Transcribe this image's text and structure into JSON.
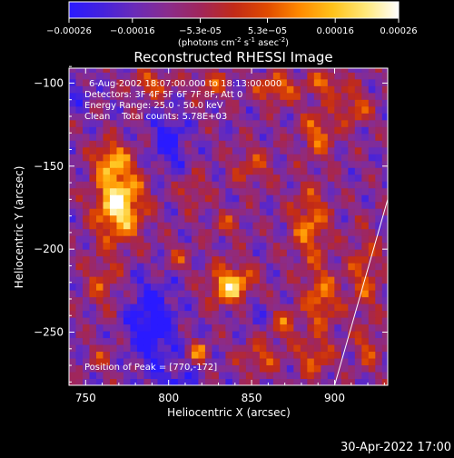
{
  "colorbar": {
    "ticks": [
      "-0.00026",
      "-0.00016",
      "-5.3e-05",
      "5.3e-05",
      "0.00016",
      "0.00026"
    ],
    "unit_label_main": "(photons cm",
    "unit_sup1": "-2",
    "unit_mid": " s",
    "unit_sup2": "-1",
    "unit_mid2": " asec",
    "unit_sup3": "-2",
    "unit_close": ")",
    "stops": [
      "#2a1aff",
      "#4422dd",
      "#6a2bb8",
      "#8a2c8c",
      "#a1265a",
      "#c12a18",
      "#e04a00",
      "#ff8a00",
      "#ffc21a",
      "#ffe87a",
      "#ffffff"
    ]
  },
  "chart_data": {
    "type": "heatmap",
    "title": "Reconstructed RHESSI Image",
    "xlabel": "Heliocentric X (arcsec)",
    "ylabel": "Heliocentric Y (arcsec)",
    "xlim": [
      740,
      932
    ],
    "ylim": [
      -282,
      -91
    ],
    "xticks": [
      750,
      800,
      850,
      900
    ],
    "yticks": [
      -100,
      -150,
      -200,
      -250
    ],
    "xtick_labels": [
      "750",
      "800",
      "850",
      "900"
    ],
    "ytick_labels": [
      "−100",
      "−150",
      "−200",
      "−250"
    ],
    "vrange": [
      -0.00026,
      0.00026
    ],
    "peak": [
      770,
      -172
    ],
    "limb_line": {
      "from": [
        900,
        -282
      ],
      "to": [
        932,
        -170
      ]
    }
  },
  "annotations": {
    "time_range": "6-Aug-2002 18:07:00.000 to 18:13:00.000",
    "detectors": "Detectors: 3F 4F 5F 6F 7F 8F, Att 0",
    "energy": "Energy Range: 25.0 - 50.0 keV",
    "clean": "Clean    Total counts: 5.78E+03",
    "peak_label": "Position of Peak = [770,-172]"
  },
  "footer": {
    "date": "30-Apr-2022 17:00"
  }
}
